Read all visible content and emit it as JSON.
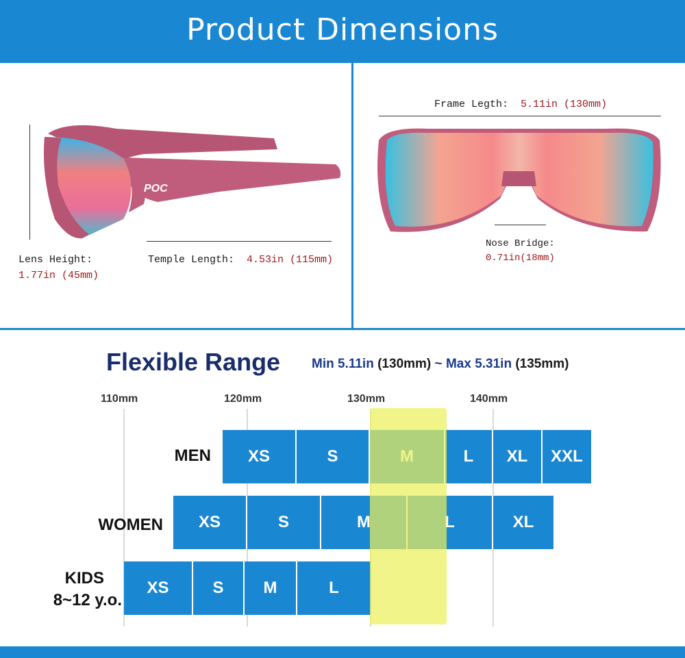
{
  "header": {
    "title": "Product Dimensions"
  },
  "side_view": {
    "lens_height_label": "Lens Height:",
    "lens_height_value": "1.77in (45mm)",
    "temple_length_label": "Temple Length:",
    "temple_length_value": "4.53in (115mm)",
    "logo_text": "POC"
  },
  "front_view": {
    "frame_length_label": "Frame Legth:",
    "frame_length_value": "5.11in (130mm)",
    "nose_bridge_label": "Nose Bridge:",
    "nose_bridge_value": "0.71in(18mm)"
  },
  "range": {
    "title": "Flexible Range",
    "min_label": "Min",
    "min_value": "5.11in",
    "min_mm": "(130mm)",
    "sep": "~",
    "max_label": "Max",
    "max_value": "5.31in",
    "max_mm": "(135mm)",
    "ticks": [
      "110mm",
      "120mm",
      "130mm",
      "140mm"
    ],
    "rows": [
      {
        "label": "MEN",
        "sizes": [
          "XS",
          "S",
          "M",
          "L",
          "XL",
          "XXL"
        ]
      },
      {
        "label": "WOMEN",
        "sizes": [
          "XS",
          "S",
          "M",
          "L",
          "XL"
        ]
      },
      {
        "label": "KIDS",
        "label2": "8~12 y.o.",
        "sizes": [
          "XS",
          "S",
          "M",
          "L"
        ]
      }
    ]
  },
  "colors": {
    "brand_blue": "#1a87d2",
    "highlight": "#ebf05a",
    "frame_pink": "#c05c7c",
    "title_navy": "#1a2d6b",
    "value_red": "#a0191f"
  }
}
